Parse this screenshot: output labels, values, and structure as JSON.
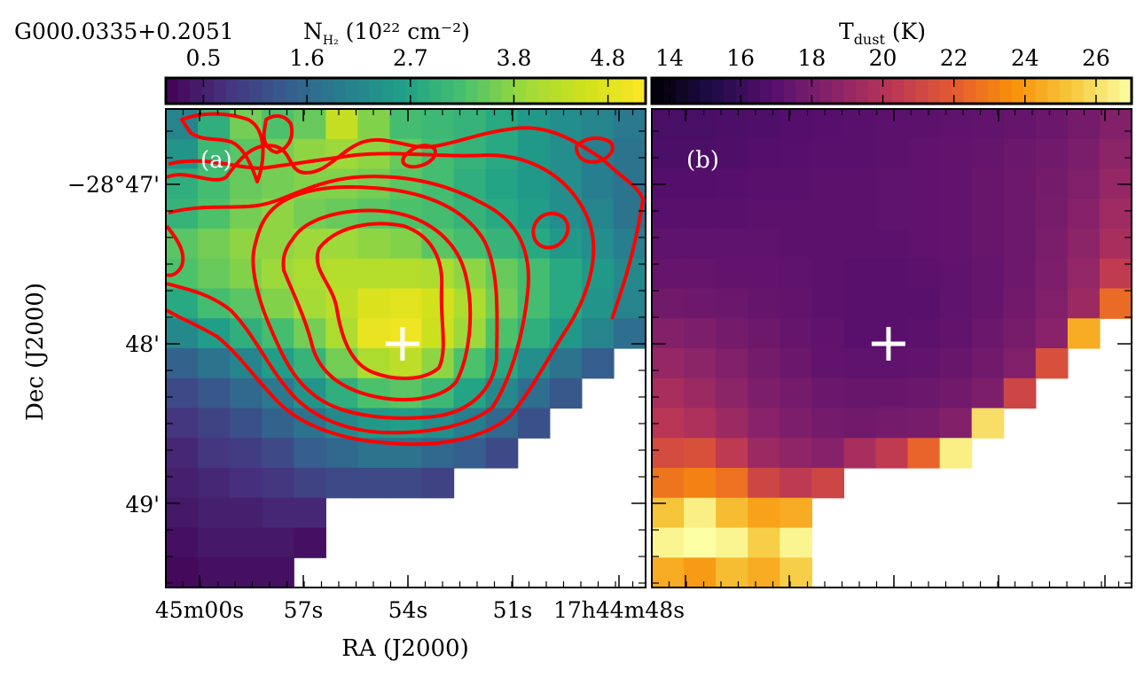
{
  "source_name": "G000.0335+0.2051",
  "panels": {
    "a": {
      "label": "(a)"
    },
    "b": {
      "label": "(b)"
    }
  },
  "colorbars": {
    "nh2": {
      "label_main": "N",
      "label_sub": "H₂",
      "label_units": " (10²² cm⁻²)",
      "ticks": [
        "0.5",
        "1.6",
        "2.7",
        "3.8",
        "4.8"
      ],
      "colormap": "viridis"
    },
    "tdust": {
      "label_main": "T",
      "label_sub": "dust",
      "label_units": " (K)",
      "ticks": [
        "14",
        "16",
        "18",
        "20",
        "22",
        "24",
        "26"
      ],
      "colormap": "inferno"
    }
  },
  "axes": {
    "xlabel": "RA (J2000)",
    "ylabel": "Dec (J2000)",
    "xticks": [
      "45m00s",
      "57s",
      "54s",
      "51s",
      "17h44m48s"
    ],
    "yticks": [
      "−28°47'",
      "48'",
      "49'"
    ]
  },
  "colors": {
    "contour": "#ff0000",
    "marker": "#ffffff",
    "frame": "#000000"
  },
  "chart_data": [
    {
      "type": "heatmap",
      "title": "",
      "quantity": "N_H2 column density (10^22 cm^-2)",
      "value_range": [
        0.1,
        5.2
      ],
      "grid": false,
      "rows_top_to_bottom": [
        [
          2.1,
          2.9,
          3.6,
          3.3,
          3.5,
          4.4,
          3.7,
          3.2,
          3.1,
          3.0,
          2.8,
          2.5,
          2.3,
          2.1,
          1.9
        ],
        [
          2.4,
          3.1,
          3.4,
          3.6,
          3.8,
          3.9,
          3.8,
          3.5,
          3.2,
          3.0,
          2.8,
          2.5,
          2.3,
          2.0,
          1.8
        ],
        [
          2.9,
          3.2,
          3.5,
          3.6,
          3.7,
          3.7,
          3.6,
          3.4,
          3.2,
          2.9,
          2.7,
          2.5,
          2.3,
          2.0,
          1.8
        ],
        [
          3.0,
          3.3,
          3.6,
          3.8,
          3.6,
          3.5,
          3.4,
          3.3,
          3.2,
          3.0,
          2.8,
          2.6,
          2.3,
          2.1,
          1.8
        ],
        [
          3.4,
          3.6,
          3.8,
          3.8,
          3.9,
          3.9,
          3.8,
          3.7,
          3.4,
          3.2,
          3.0,
          2.8,
          2.5,
          2.3,
          2.0
        ],
        [
          3.3,
          3.5,
          3.7,
          3.9,
          4.1,
          4.2,
          4.2,
          4.2,
          4.1,
          3.8,
          3.5,
          3.2,
          2.8,
          2.5,
          2.2
        ],
        [
          2.8,
          3.2,
          3.4,
          3.7,
          4.0,
          4.3,
          4.7,
          4.8,
          4.6,
          4.1,
          3.6,
          3.2,
          2.8,
          2.4,
          2.1
        ],
        [
          2.2,
          2.6,
          2.9,
          3.2,
          3.6,
          4.1,
          4.9,
          5.0,
          4.5,
          3.9,
          3.3,
          2.9,
          2.5,
          2.1,
          1.7
        ],
        [
          1.5,
          1.8,
          2.1,
          2.6,
          3.0,
          3.6,
          4.1,
          4.3,
          3.8,
          3.3,
          2.8,
          2.3,
          1.8,
          1.4,
          null
        ],
        [
          1.1,
          1.3,
          1.6,
          1.9,
          2.4,
          2.9,
          3.3,
          3.4,
          3.1,
          2.7,
          2.2,
          1.7,
          1.3,
          null,
          null
        ],
        [
          0.8,
          1.0,
          1.2,
          1.5,
          1.8,
          2.2,
          2.5,
          2.6,
          2.3,
          2.0,
          1.6,
          1.2,
          null,
          null,
          null
        ],
        [
          0.6,
          0.8,
          0.9,
          1.1,
          1.4,
          1.6,
          1.8,
          1.8,
          1.6,
          1.4,
          1.1,
          null,
          null,
          null,
          null
        ],
        [
          0.5,
          0.6,
          0.7,
          0.8,
          1.0,
          1.1,
          1.1,
          1.1,
          1.0,
          null,
          null,
          null,
          null,
          null,
          null
        ],
        [
          0.4,
          0.5,
          0.5,
          0.6,
          0.6,
          null,
          null,
          null,
          null,
          null,
          null,
          null,
          null,
          null,
          null
        ],
        [
          0.3,
          0.4,
          0.4,
          0.4,
          0.3,
          null,
          null,
          null,
          null,
          null,
          null,
          null,
          null,
          null,
          null
        ],
        [
          0.2,
          0.3,
          0.3,
          0.3,
          null,
          null,
          null,
          null,
          null,
          null,
          null,
          null,
          null,
          null,
          null
        ]
      ],
      "markers": [
        {
          "shape": "cross",
          "col": 7.4,
          "row": 7.85
        }
      ]
    },
    {
      "type": "heatmap",
      "title": "",
      "quantity": "T_dust (K)",
      "value_range": [
        13.5,
        27
      ],
      "grid": false,
      "rows_top_to_bottom": [
        [
          16.5,
          16.5,
          16.6,
          16.7,
          16.8,
          16.9,
          17.0,
          17.1,
          17.1,
          17.2,
          17.3,
          17.4,
          17.6,
          17.9,
          18.4
        ],
        [
          16.6,
          16.6,
          16.7,
          16.8,
          16.9,
          17.0,
          17.0,
          17.1,
          17.2,
          17.3,
          17.4,
          17.6,
          17.8,
          18.1,
          18.7
        ],
        [
          16.8,
          16.8,
          16.9,
          17.0,
          17.0,
          17.1,
          17.1,
          17.2,
          17.2,
          17.3,
          17.5,
          17.7,
          17.9,
          18.3,
          19.0
        ],
        [
          17.0,
          17.0,
          17.0,
          17.1,
          17.1,
          17.1,
          17.1,
          17.2,
          17.2,
          17.3,
          17.5,
          17.7,
          18.0,
          18.5,
          19.3
        ],
        [
          17.2,
          17.2,
          17.2,
          17.2,
          17.1,
          17.1,
          17.1,
          17.1,
          17.2,
          17.3,
          17.5,
          17.7,
          18.1,
          18.7,
          19.6
        ],
        [
          17.4,
          17.4,
          17.3,
          17.3,
          17.2,
          17.1,
          17.0,
          17.0,
          17.1,
          17.2,
          17.4,
          17.7,
          18.2,
          18.9,
          20.5
        ],
        [
          17.8,
          17.7,
          17.6,
          17.4,
          17.3,
          17.1,
          17.0,
          17.0,
          17.0,
          17.2,
          17.4,
          17.8,
          18.3,
          19.2,
          22.5
        ],
        [
          18.4,
          18.2,
          17.9,
          17.7,
          17.4,
          17.2,
          17.0,
          17.0,
          17.1,
          17.3,
          17.6,
          18.0,
          18.6,
          24.5,
          null
        ],
        [
          19.0,
          18.7,
          18.3,
          17.9,
          17.6,
          17.3,
          17.2,
          17.2,
          17.3,
          17.5,
          17.8,
          18.3,
          21.5,
          null,
          null
        ],
        [
          19.6,
          19.2,
          18.7,
          18.2,
          17.9,
          17.6,
          17.5,
          17.5,
          17.6,
          17.8,
          18.2,
          21.0,
          null,
          null,
          null
        ],
        [
          20.2,
          19.8,
          19.2,
          18.6,
          18.2,
          17.9,
          17.8,
          17.9,
          18.0,
          18.4,
          26.0,
          null,
          null,
          null,
          null
        ],
        [
          21.3,
          21.5,
          20.4,
          19.2,
          18.8,
          18.5,
          19.6,
          20.5,
          22.3,
          26.5,
          null,
          null,
          null,
          null,
          null
        ],
        [
          22.8,
          23.2,
          22.7,
          21.0,
          20.4,
          21.0,
          null,
          null,
          null,
          null,
          null,
          null,
          null,
          null,
          null
        ],
        [
          25.2,
          26.5,
          25.0,
          24.2,
          24.5,
          null,
          null,
          null,
          null,
          null,
          null,
          null,
          null,
          null,
          null
        ],
        [
          26.7,
          27.0,
          26.7,
          25.5,
          26.7,
          null,
          null,
          null,
          null,
          null,
          null,
          null,
          null,
          null,
          null
        ],
        [
          24.5,
          24.0,
          25.0,
          24.5,
          25.5,
          null,
          null,
          null,
          null,
          null,
          null,
          null,
          null,
          null,
          null
        ]
      ],
      "markers": [
        {
          "shape": "cross",
          "col": 7.4,
          "row": 7.85
        }
      ]
    }
  ]
}
